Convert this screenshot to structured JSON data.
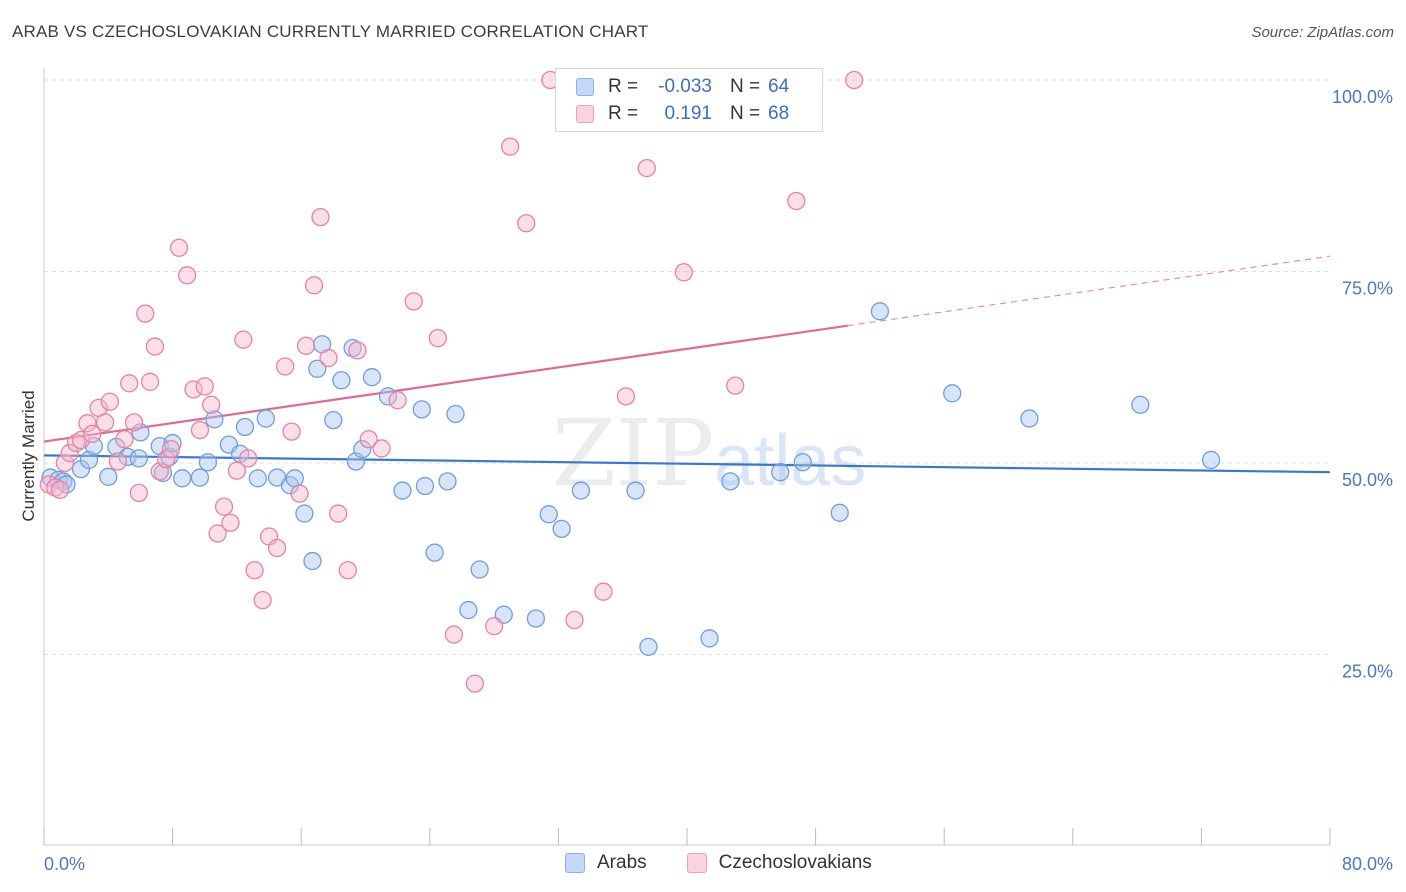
{
  "header": {
    "title": "ARAB VS CZECHOSLOVAKIAN CURRENTLY MARRIED CORRELATION CHART",
    "source": "Source: ZipAtlas.com"
  },
  "legend": {
    "rows": [
      {
        "r_label": "R =",
        "r_value": "-0.033",
        "n_label": "N =",
        "n_value": "64",
        "color": "#a9c4ef"
      },
      {
        "r_label": "R =",
        "r_value": "0.191",
        "n_label": "N =",
        "n_value": "68",
        "color": "#f5b8cb"
      }
    ]
  },
  "bottom_legend": {
    "items": [
      {
        "label": "Arabs",
        "color": "#a9c4ef"
      },
      {
        "label": "Czechoslovakians",
        "color": "#f5b8cb"
      }
    ]
  },
  "watermark": {
    "zip": "ZIP",
    "atlas": "atlas"
  },
  "chart_data": {
    "type": "scatter",
    "title": "ARAB VS CZECHOSLOVAKIAN CURRENTLY MARRIED CORRELATION CHART",
    "xlabel": "",
    "ylabel": "Currently Married",
    "xlim": [
      0,
      80
    ],
    "ylim": [
      0,
      102
    ],
    "x_tick_labels": [
      "0.0%",
      "80.0%"
    ],
    "y_tick_labels": [
      "100.0%",
      "75.0%",
      "50.0%",
      "25.0%"
    ],
    "y_ticks": [
      100,
      75,
      50,
      25
    ],
    "grid": true,
    "legend_position": "top-center",
    "series": [
      {
        "name": "Arabs",
        "color": "#6f9ee0",
        "fill": "#a9c4ef",
        "trend": {
          "x": [
            0,
            80
          ],
          "y": [
            51.0,
            48.8
          ],
          "dashed_from": null
        },
        "points": [
          [
            0.4,
            48.1
          ],
          [
            0.9,
            47.8
          ],
          [
            1.2,
            47.6
          ],
          [
            1.4,
            47.2
          ],
          [
            2.3,
            49.2
          ],
          [
            2.8,
            50.4
          ],
          [
            3.1,
            52.2
          ],
          [
            4.0,
            48.2
          ],
          [
            4.5,
            52.1
          ],
          [
            5.2,
            50.8
          ],
          [
            5.9,
            50.6
          ],
          [
            6.0,
            54.0
          ],
          [
            7.2,
            52.2
          ],
          [
            7.4,
            48.7
          ],
          [
            7.8,
            50.8
          ],
          [
            8.0,
            52.6
          ],
          [
            8.6,
            48.0
          ],
          [
            9.7,
            48.1
          ],
          [
            10.2,
            50.1
          ],
          [
            10.6,
            55.7
          ],
          [
            11.5,
            52.4
          ],
          [
            12.2,
            51.2
          ],
          [
            12.5,
            54.7
          ],
          [
            13.3,
            48.0
          ],
          [
            13.8,
            55.8
          ],
          [
            14.5,
            48.1
          ],
          [
            15.3,
            47.1
          ],
          [
            15.6,
            48.0
          ],
          [
            16.2,
            43.4
          ],
          [
            16.7,
            37.2
          ],
          [
            17.0,
            62.3
          ],
          [
            17.3,
            65.5
          ],
          [
            18.0,
            55.6
          ],
          [
            18.5,
            60.8
          ],
          [
            19.2,
            65.0
          ],
          [
            19.4,
            50.2
          ],
          [
            19.8,
            51.8
          ],
          [
            20.4,
            61.2
          ],
          [
            21.4,
            58.7
          ],
          [
            22.3,
            46.4
          ],
          [
            23.5,
            57.0
          ],
          [
            23.7,
            47.0
          ],
          [
            24.3,
            38.3
          ],
          [
            25.1,
            47.6
          ],
          [
            25.6,
            56.4
          ],
          [
            26.4,
            30.8
          ],
          [
            27.1,
            36.1
          ],
          [
            28.6,
            30.2
          ],
          [
            30.6,
            29.7
          ],
          [
            31.4,
            43.3
          ],
          [
            32.2,
            41.4
          ],
          [
            33.4,
            46.4
          ],
          [
            36.8,
            46.4
          ],
          [
            37.6,
            26.0
          ],
          [
            41.4,
            27.1
          ],
          [
            42.7,
            47.6
          ],
          [
            45.8,
            48.8
          ],
          [
            47.2,
            50.1
          ],
          [
            49.5,
            43.5
          ],
          [
            52.0,
            69.8
          ],
          [
            56.5,
            59.1
          ],
          [
            61.3,
            55.8
          ],
          [
            68.2,
            57.6
          ],
          [
            72.6,
            50.4
          ]
        ]
      },
      {
        "name": "Czechoslovakians",
        "color": "#e7829f",
        "fill": "#f5b8cb",
        "trend": {
          "x": [
            0,
            80
          ],
          "y": [
            52.8,
            77.0
          ],
          "dashed_from": 50
        },
        "points": [
          [
            0.3,
            47.2
          ],
          [
            0.7,
            46.8
          ],
          [
            1.0,
            46.5
          ],
          [
            1.3,
            50.0
          ],
          [
            1.6,
            51.3
          ],
          [
            2.0,
            52.6
          ],
          [
            2.3,
            53.0
          ],
          [
            2.7,
            55.2
          ],
          [
            3.0,
            53.8
          ],
          [
            3.4,
            57.2
          ],
          [
            3.8,
            55.3
          ],
          [
            4.1,
            58.0
          ],
          [
            4.6,
            50.2
          ],
          [
            5.0,
            53.1
          ],
          [
            5.3,
            60.4
          ],
          [
            5.6,
            55.3
          ],
          [
            5.9,
            46.1
          ],
          [
            6.3,
            69.5
          ],
          [
            6.6,
            60.6
          ],
          [
            6.9,
            65.2
          ],
          [
            7.2,
            48.9
          ],
          [
            7.6,
            50.5
          ],
          [
            7.9,
            51.8
          ],
          [
            8.4,
            78.1
          ],
          [
            8.9,
            74.5
          ],
          [
            9.3,
            59.6
          ],
          [
            9.7,
            54.3
          ],
          [
            10.0,
            60.0
          ],
          [
            10.4,
            57.6
          ],
          [
            10.8,
            40.8
          ],
          [
            11.2,
            44.3
          ],
          [
            11.6,
            42.2
          ],
          [
            12.0,
            49.0
          ],
          [
            12.4,
            66.1
          ],
          [
            12.7,
            50.6
          ],
          [
            13.1,
            36.0
          ],
          [
            13.6,
            32.1
          ],
          [
            14.0,
            40.4
          ],
          [
            14.5,
            38.9
          ],
          [
            15.0,
            62.6
          ],
          [
            15.4,
            54.1
          ],
          [
            15.9,
            46.0
          ],
          [
            16.3,
            65.3
          ],
          [
            16.8,
            73.2
          ],
          [
            17.2,
            82.1
          ],
          [
            17.7,
            63.7
          ],
          [
            18.3,
            43.4
          ],
          [
            18.9,
            36.0
          ],
          [
            19.5,
            64.7
          ],
          [
            20.2,
            53.1
          ],
          [
            21.0,
            51.9
          ],
          [
            22.0,
            58.2
          ],
          [
            23.0,
            71.1
          ],
          [
            24.5,
            66.3
          ],
          [
            25.5,
            27.6
          ],
          [
            26.8,
            21.2
          ],
          [
            28.0,
            28.7
          ],
          [
            29.0,
            91.3
          ],
          [
            30.0,
            81.3
          ],
          [
            31.5,
            100.0
          ],
          [
            33.0,
            29.5
          ],
          [
            34.8,
            33.2
          ],
          [
            36.2,
            58.7
          ],
          [
            37.5,
            88.5
          ],
          [
            39.8,
            74.9
          ],
          [
            43.0,
            60.1
          ],
          [
            46.8,
            84.2
          ],
          [
            50.4,
            100.0
          ]
        ]
      }
    ]
  }
}
